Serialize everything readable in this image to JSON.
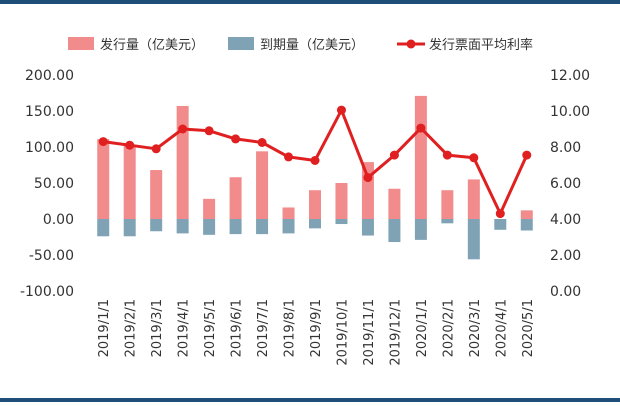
{
  "chart_data": {
    "type": "bar",
    "categories": [
      "2019/1/1",
      "2019/2/1",
      "2019/3/1",
      "2019/4/1",
      "2019/5/1",
      "2019/6/1",
      "2019/7/1",
      "2019/8/1",
      "2019/9/1",
      "2019/10/1",
      "2019/11/1",
      "2019/12/1",
      "2020/1/1",
      "2020/2/1",
      "2020/3/1",
      "2020/4/1",
      "2020/5/1"
    ],
    "series": [
      {
        "name": "发行量（亿美元）",
        "type": "bar",
        "axis": "left",
        "color": "#F28B8B",
        "values": [
          111,
          102,
          68,
          157,
          28,
          58,
          94,
          16,
          40,
          50,
          79,
          42,
          171,
          40,
          55,
          0,
          12
        ]
      },
      {
        "name": "到期量（亿美元）",
        "type": "bar",
        "axis": "left",
        "color": "#7FA3B5",
        "values": [
          -24,
          -24,
          -17,
          -20,
          -22,
          -21,
          -21,
          -20,
          -13,
          -7,
          -23,
          -32,
          -29,
          -6,
          -56,
          -15,
          -16
        ]
      },
      {
        "name": "发行票面平均利率",
        "type": "line",
        "axis": "right",
        "color": "#E02020",
        "values": [
          8.3,
          8.1,
          7.9,
          9.0,
          8.9,
          8.45,
          8.25,
          7.45,
          7.25,
          10.05,
          6.3,
          7.55,
          9.05,
          7.55,
          7.4,
          4.3,
          7.55
        ]
      }
    ],
    "y_left": {
      "min": -100,
      "max": 200,
      "ticks": [
        "200.00",
        "150.00",
        "100.00",
        "50.00",
        "0.00",
        "-50.00",
        "-100.00"
      ]
    },
    "y_right": {
      "min": 0,
      "max": 12,
      "ticks": [
        "12.00",
        "10.00",
        "8.00",
        "6.00",
        "4.00",
        "2.00",
        "0.00"
      ]
    },
    "grid": false,
    "legend_position": "top"
  }
}
